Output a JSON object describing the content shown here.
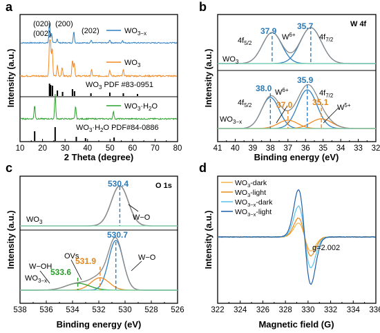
{
  "chart_data": [
    {
      "panel": "a",
      "type": "line",
      "xlabel": "2 Theta (degree)",
      "ylabel": "Intensity (a.u.)",
      "xlim": [
        10,
        80
      ],
      "xticks": [
        "10",
        "20",
        "30",
        "40",
        "50",
        "60",
        "70",
        "80"
      ],
      "peak_labels": [
        "(002)",
        "(020)",
        "(200)",
        "(202)"
      ],
      "series": [
        {
          "name": "WO3−x",
          "color": "#2f7fc1",
          "x": [
            23.1,
            24.0,
            26.5,
            33.9,
            41.6,
            49.9,
            55.6
          ],
          "y": [
            1.0,
            0.45,
            0.2,
            0.55,
            0.12,
            0.15,
            0.12
          ]
        },
        {
          "name": "WO3",
          "color": "#f08a24",
          "x": [
            23.1,
            23.6,
            24.3,
            26.6,
            28.7,
            33.3,
            34.1,
            41.8,
            49.9,
            55.9
          ],
          "y": [
            1.0,
            0.95,
            0.9,
            0.35,
            0.3,
            0.55,
            0.45,
            0.2,
            0.2,
            0.2
          ]
        },
        {
          "name": "WO3·H2O",
          "color": "#2ca02c",
          "x": [
            16.5,
            25.6,
            34.7,
            51.5
          ],
          "y": [
            0.55,
            1.0,
            0.5,
            0.3
          ]
        }
      ],
      "references": [
        {
          "label": "WO3 PDF #83-0951",
          "x": [
            23.1,
            23.6,
            24.4,
            26.6,
            28.9,
            33.3,
            34.2,
            41.5,
            49.9,
            55.9,
            62.2
          ]
        },
        {
          "label": "WO3·H2O PDF#84-0886",
          "x": [
            16.5,
            25.6,
            35.0,
            39.1,
            51.8
          ]
        }
      ]
    },
    {
      "panel": "b",
      "type": "line",
      "title": "W 4f",
      "xlabel": "Binding energy (eV)",
      "ylabel": "Intensity (a.u.)",
      "xlim": [
        41,
        32
      ],
      "xticks": [
        "41",
        "40",
        "39",
        "38",
        "37",
        "36",
        "35",
        "34",
        "33",
        "32"
      ],
      "samples": [
        {
          "name": "WO3",
          "peaks": [
            {
              "label": "4f5/2",
              "state": "W6+",
              "be": 37.9
            },
            {
              "label": "4f7/2",
              "state": "W6+",
              "be": 35.7
            }
          ]
        },
        {
          "name": "WO3−x",
          "peaks": [
            {
              "label": "4f5/2",
              "state": "W6+",
              "be": 38.0
            },
            {
              "label": "4f7/2",
              "state": "W6+",
              "be": 35.9
            },
            {
              "label": "",
              "state": "W5+",
              "be": 37.0
            },
            {
              "label": "",
              "state": "W5+",
              "be": 35.1
            }
          ]
        }
      ]
    },
    {
      "panel": "c",
      "type": "line",
      "title": "O 1s",
      "xlabel": "Binding energy (eV)",
      "ylabel": "Intensity (a.u.)",
      "xlim": [
        538,
        526
      ],
      "xticks": [
        "538",
        "536",
        "534",
        "532",
        "530",
        "528",
        "526"
      ],
      "samples": [
        {
          "name": "WO3",
          "peaks": [
            {
              "label": "W−O",
              "be": 530.4
            }
          ]
        },
        {
          "name": "WO3−x",
          "peaks": [
            {
              "label": "W−O",
              "be": 530.7
            },
            {
              "label": "OVs",
              "be": 531.9
            },
            {
              "label": "W−OH",
              "be": 533.6
            }
          ]
        }
      ]
    },
    {
      "panel": "d",
      "type": "line",
      "xlabel": "Magnetic field (G)",
      "ylabel": "Intensity (a.u.)",
      "xlim": [
        322,
        336
      ],
      "xticks": [
        "322",
        "324",
        "326",
        "328",
        "330",
        "332",
        "334",
        "336"
      ],
      "annotation": "g=2.002",
      "center": 329.7,
      "series": [
        {
          "name": "WO3-dark",
          "color": "#f2b54a",
          "amplitude": 0.28
        },
        {
          "name": "WO3-light",
          "color": "#ec8a1c",
          "amplitude": 0.38
        },
        {
          "name": "WO3−x-dark",
          "color": "#5bc2e7",
          "amplitude": 0.62
        },
        {
          "name": "WO3−x-light",
          "color": "#1f5fa8",
          "amplitude": 0.95
        }
      ]
    }
  ],
  "panel_letters": [
    "a",
    "b",
    "c",
    "d"
  ],
  "text": {
    "a_leg1": "WO",
    "a_leg1_sub": "3−x",
    "a_leg2": "WO",
    "a_leg2_sub": "3",
    "a_ref1": "WO",
    "a_ref1_sub": "3",
    "a_ref1_tail": " PDF #83-0951",
    "a_leg3": "WO",
    "a_leg3_sub": "3",
    "a_leg3_tail": "·H",
    "a_leg3_sub2": "2",
    "a_leg3_tail2": "O",
    "a_ref2": "WO",
    "a_ref2_sub": "3",
    "a_ref2_tail": "·H",
    "a_ref2_sub2": "2",
    "a_ref2_tail2": "O PDF#84-0886",
    "b_top_sample": "WO",
    "b_top_sample_sub": "3",
    "b_bot_sample": "WO",
    "b_bot_sample_sub": "3−x",
    "b_4f52": "4f",
    "b_4f52_sub": "5/2",
    "b_4f72": "4f",
    "b_4f72_sub": "7/2",
    "b_w6": "W",
    "b_w6_sup": "6+",
    "b_w5": "W",
    "b_w5_sup": "5+",
    "b_v379": "37.9",
    "b_v357": "35.7",
    "b_v380": "38.0",
    "b_v359": "35.9",
    "b_v370": "37.0",
    "b_v351": "35.1",
    "c_v5304": "530.4",
    "c_v5307": "530.7",
    "c_v5319": "531.9",
    "c_v5336": "533.6",
    "c_wo": "W−O",
    "c_ovs": "OVs",
    "c_woh": "W−OH",
    "c_top_sample": "WO",
    "c_top_sample_sub": "3",
    "c_bot_sample": "WO",
    "c_bot_sample_sub": "3−x",
    "d_l1": "WO",
    "d_l1_sub": "3",
    "d_l1_tail": "-dark",
    "d_l2": "WO",
    "d_l2_sub": "3",
    "d_l2_tail": "-light",
    "d_l3": "WO",
    "d_l3_sub": "3−x",
    "d_l3_tail": "-dark",
    "d_l4": "WO",
    "d_l4_sub": "3−x",
    "d_l4_tail": "-light"
  },
  "colors": {
    "blue": "#2f7fc1",
    "orange": "#f08a24",
    "green": "#2ca02c",
    "label_blue": "#2a7ab8",
    "label_orange": "#e0861e",
    "label_green": "#2a9a2a",
    "envelope": "#8a8a8a",
    "baseline": "#7fd6b0"
  }
}
